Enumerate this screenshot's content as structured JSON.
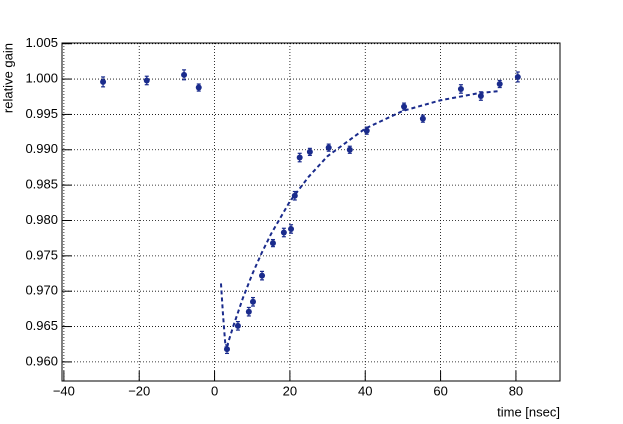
{
  "chart_data": {
    "type": "scatter",
    "x_label": "time [nsec]",
    "y_label": "relative gain",
    "color": "#1a2b8c",
    "x": [
      -29.6,
      -18.0,
      -8.1,
      -4.2,
      3.3,
      6.2,
      9.1,
      10.2,
      12.6,
      15.5,
      18.4,
      20.3,
      21.3,
      22.6,
      25.3,
      30.3,
      35.9,
      40.4,
      50.3,
      55.3,
      65.4,
      70.7,
      75.7,
      80.5
    ],
    "values": [
      0.9996,
      0.9998,
      1.0006,
      0.9988,
      0.9618,
      0.9651,
      0.9671,
      0.9685,
      0.9722,
      0.9768,
      0.9783,
      0.9788,
      0.9835,
      0.9889,
      0.9897,
      0.9903,
      0.99,
      0.9927,
      0.9961,
      0.9944,
      0.9986,
      0.9976,
      0.9993,
      1.0003
    ],
    "errors": [
      0.0007,
      0.0006,
      0.0007,
      0.0005,
      0.0006,
      0.0006,
      0.0006,
      0.0006,
      0.0006,
      0.0005,
      0.0006,
      0.0006,
      0.0006,
      0.0006,
      0.0005,
      0.0005,
      0.0005,
      0.0005,
      0.0005,
      0.0005,
      0.0006,
      0.0006,
      0.0005,
      0.0007
    ],
    "fit": {
      "x": [
        1.7,
        2.2,
        2.7,
        3.0,
        5,
        7.5,
        10,
        12.5,
        15,
        20,
        25,
        30,
        40,
        50,
        60,
        70,
        75.5
      ],
      "values": [
        0.9711,
        0.967,
        0.9635,
        0.9617,
        0.9651,
        0.969,
        0.9724,
        0.9754,
        0.9781,
        0.9827,
        0.9862,
        0.9891,
        0.993,
        0.9955,
        0.997,
        0.998,
        0.9983
      ]
    },
    "fit_color": "#1a2b8c",
    "xlim": [
      -40.5,
      91.7
    ],
    "ylim": [
      0.9573,
      1.0051
    ],
    "xticks": [
      {
        "value": -40,
        "label": "−40"
      },
      {
        "value": -20,
        "label": "−20"
      },
      0,
      20,
      40,
      60,
      80
    ],
    "yticks": [
      {
        "value": 0.96,
        "label": "0.960"
      },
      0.965,
      {
        "value": 0.97,
        "label": "0.970"
      },
      0.975,
      {
        "value": 0.98,
        "label": "0.980"
      },
      0.985,
      {
        "value": 0.99,
        "label": "0.990"
      },
      0.995,
      {
        "value": 1,
        "label": "1.000"
      },
      1.005
    ],
    "grid": true
  }
}
